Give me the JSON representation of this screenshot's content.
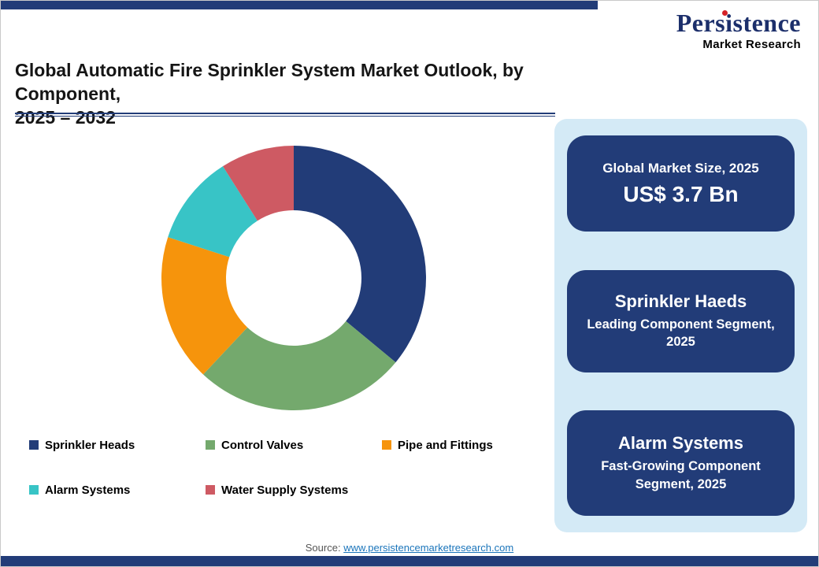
{
  "theme": {
    "navy": "#223C78",
    "panel_blue": "#D4EAF6",
    "link_blue": "#1B75BB",
    "logo_navy": "#1C2F6B",
    "logo_dot_red": "#D42127"
  },
  "logo": {
    "name": "Persistence",
    "subtitle": "Market Research"
  },
  "header": {
    "title_line1": "Global Automatic Fire Sprinkler System Market Outlook, by Component,",
    "title_line2": "2025 – 2032"
  },
  "chart_data": {
    "type": "pie",
    "subtype": "donut",
    "title": "Global Automatic Fire Sprinkler System Market Outlook, by Component, 2025 – 2032",
    "categories": [
      "Sprinkler Heads",
      "Control Valves",
      "Pipe and Fittings",
      "Alarm Systems",
      "Water Supply Systems"
    ],
    "values": [
      36,
      26,
      18,
      11,
      9
    ],
    "values_note": "approximate % share estimated from arc angles; no numeric labels shown in image",
    "colors": [
      "#223C78",
      "#74A96D",
      "#F6940C",
      "#38C4C6",
      "#CE5A63"
    ],
    "start_angle_deg": 0,
    "direction": "clockwise",
    "inner_radius_ratio": 0.51,
    "legend_position": "bottom-left"
  },
  "sidebar": {
    "cards": [
      {
        "line1": "Global Market Size, 2025",
        "line2": "US$ 3.7 Bn"
      },
      {
        "line1": "Sprinkler Haeds",
        "line2": "Leading Component Segment, 2025"
      },
      {
        "line1": "Alarm Systems",
        "line2": "Fast-Growing Component Segment, 2025"
      }
    ]
  },
  "footer": {
    "source_label": "Source: ",
    "source_link": "www.persistencemarketresearch.com"
  }
}
